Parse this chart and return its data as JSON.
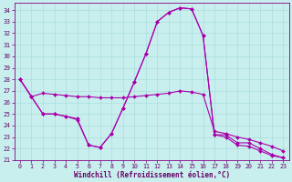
{
  "xlabel": "Windchill (Refroidissement éolien,°C)",
  "background_color": "#c8efee",
  "line_color": "#aa00aa",
  "grid_color": "#aadddd",
  "xlim_min": -0.5,
  "xlim_max": 23.5,
  "ylim_min": 21.0,
  "ylim_max": 34.6,
  "yticks": [
    21,
    22,
    23,
    24,
    25,
    26,
    27,
    28,
    29,
    30,
    31,
    32,
    33,
    34
  ],
  "xticks": [
    0,
    1,
    2,
    3,
    4,
    5,
    6,
    7,
    8,
    9,
    10,
    11,
    12,
    13,
    14,
    15,
    16,
    17,
    18,
    19,
    20,
    21,
    22,
    23
  ],
  "s1_y": [
    28.0,
    26.5,
    26.8,
    26.7,
    26.6,
    26.5,
    26.5,
    26.4,
    26.4,
    26.4,
    26.5,
    26.6,
    26.7,
    26.8,
    27.0,
    26.9,
    26.7,
    23.5,
    23.3,
    23.0,
    22.8,
    22.5,
    22.2,
    21.8
  ],
  "s2_y": [
    28.0,
    26.5,
    25.0,
    25.0,
    24.8,
    24.6,
    22.3,
    22.1,
    23.3,
    25.5,
    27.8,
    30.2,
    33.0,
    33.8,
    34.2,
    34.1,
    31.8,
    23.2,
    23.2,
    22.5,
    22.5,
    22.0,
    21.5,
    21.2
  ],
  "s3_y": [
    28.0,
    26.5,
    25.0,
    25.0,
    24.8,
    24.5,
    22.3,
    22.1,
    23.3,
    25.5,
    27.8,
    30.2,
    33.0,
    33.8,
    34.2,
    34.1,
    31.8,
    23.2,
    23.0,
    22.3,
    22.2,
    21.8,
    21.4,
    21.2
  ],
  "tick_color": "#660066",
  "spine_color": "#880088",
  "xlabel_fontsize": 5.5,
  "tick_fontsize": 4.8,
  "marker_size": 2.0,
  "linewidth": 0.8
}
